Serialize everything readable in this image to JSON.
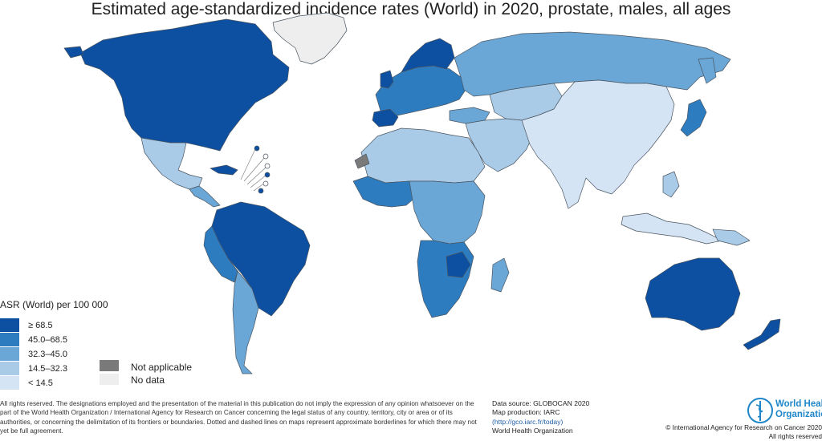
{
  "map": {
    "title": "Estimated age-standardized incidence rates (World) in 2020, prostate, males, all ages",
    "legend": {
      "title": "ASR (World) per 100 000",
      "classes": [
        {
          "label": "≥ 68.5",
          "color": "#0d4fa0"
        },
        {
          "label": "45.0–68.5",
          "color": "#2e7cc0"
        },
        {
          "label": "32.3–45.0",
          "color": "#6aa6d6"
        },
        {
          "label": "14.5–32.3",
          "color": "#a9cbe8"
        },
        {
          "label": "< 14.5",
          "color": "#d4e4f4"
        }
      ],
      "not_applicable": {
        "label": "Not applicable",
        "color": "#7a7a7a"
      },
      "no_data": {
        "label": "No data",
        "color": "#eeeeee"
      }
    },
    "colors": {
      "border": "#4a5560",
      "background": "#ffffff"
    }
  },
  "footer": {
    "disclaimer": "All rights reserved. The designations employed and the presentation of the material in this publication do not imply the expression of any opinion whatsoever on the part of the World Health Organization / International Agency for Research on Cancer concerning the legal status of any country, territory, city or area or of its authorities, or concerning the delimitation of its frontiers or boundaries. Dotted and dashed lines on maps represent approximate borderlines for which there may not yet be full agreement.",
    "data_source": "Data source: GLOBOCAN 2020",
    "map_production": "Map production: IARC",
    "url": "(http://gco.iarc.fr/today)",
    "org": "World Health Organization",
    "who_logo_line1": "World Health",
    "who_logo_line2": "Organization",
    "copyright_line1": "© International Agency for Research on Cancer 2020",
    "copyright_line2": "All rights reserved"
  }
}
